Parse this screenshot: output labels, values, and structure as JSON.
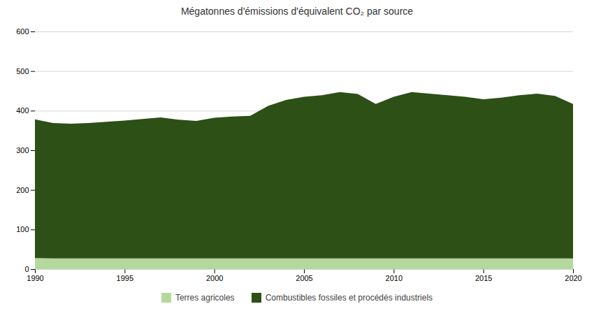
{
  "chart_data": {
    "type": "area",
    "stacked": true,
    "title": "Mégatonnes d'émissions d'équivalent CO₂ par source",
    "x": [
      1990,
      1991,
      1992,
      1993,
      1994,
      1995,
      1996,
      1997,
      1998,
      1999,
      2000,
      2001,
      2002,
      2003,
      2004,
      2005,
      2006,
      2007,
      2008,
      2009,
      2010,
      2011,
      2012,
      2013,
      2014,
      2015,
      2016,
      2017,
      2018,
      2019,
      2020
    ],
    "series": [
      {
        "name": "Terres agricoles",
        "color": "#b5d99c",
        "values": [
          28,
          27,
          27,
          27,
          27,
          27,
          27,
          27,
          27,
          27,
          27,
          27,
          27,
          27,
          27,
          27,
          27,
          27,
          27,
          27,
          27,
          27,
          27,
          27,
          27,
          27,
          27,
          27,
          27,
          27,
          27
        ]
      },
      {
        "name": "Combustibles fossiles et procédés industriels",
        "color": "#2d5016",
        "values": [
          350,
          342,
          340,
          342,
          345,
          348,
          352,
          356,
          350,
          347,
          355,
          358,
          360,
          385,
          400,
          408,
          412,
          420,
          415,
          390,
          408,
          420,
          416,
          412,
          408,
          402,
          406,
          412,
          416,
          410,
          390
        ]
      }
    ],
    "xlim": [
      1990,
      2020
    ],
    "xticks": [
      1990,
      1995,
      2000,
      2005,
      2010,
      2015,
      2020
    ],
    "ylim": [
      0,
      600
    ],
    "yticks": [
      0,
      100,
      200,
      300,
      400,
      500,
      600
    ],
    "grid": true,
    "legend": "bottom"
  }
}
